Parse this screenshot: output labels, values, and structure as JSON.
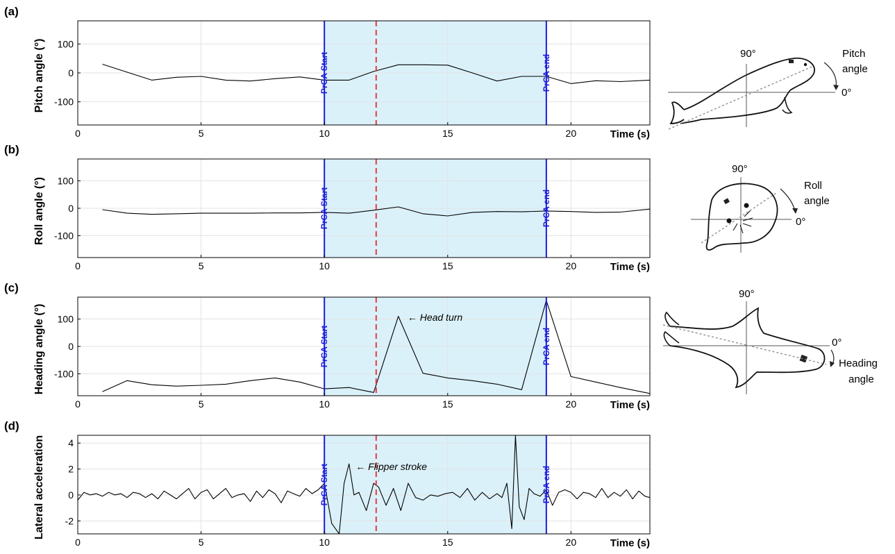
{
  "colors": {
    "line": "#000000",
    "shade": "#daf1fa",
    "marker": "#1a1adb",
    "dashed": "#e8383d",
    "grid": "#e3e3e3"
  },
  "chart_data": [
    {
      "type": "line",
      "panel": "(a)",
      "ylabel": "Pitch angle (°)",
      "xlabel": "Time (s)",
      "xlim": [
        0,
        23.2
      ],
      "ylim": [
        -180,
        180
      ],
      "xticks": [
        0,
        5,
        10,
        15,
        20
      ],
      "yticks": [
        -100,
        0,
        100
      ],
      "grid": true,
      "shaded_region": [
        10,
        19
      ],
      "dashed_line_x": 12.1,
      "markers": [
        {
          "x": 10,
          "label": "PrCA Start"
        },
        {
          "x": 19,
          "label": "PrCA end"
        }
      ],
      "annotations": [],
      "series": [
        {
          "x": [
            1,
            3,
            4,
            5,
            6,
            7,
            8,
            9,
            10,
            11,
            12,
            13,
            14,
            15,
            16,
            17,
            18,
            19,
            20,
            21,
            22,
            23.2
          ],
          "y": [
            30,
            -25,
            -15,
            -12,
            -25,
            -28,
            -20,
            -14,
            -25,
            -25,
            5,
            28,
            28,
            27,
            0,
            -28,
            -12,
            -12,
            -37,
            -27,
            -30,
            -25
          ]
        }
      ]
    },
    {
      "type": "line",
      "panel": "(b)",
      "ylabel": "Roll angle (°)",
      "xlabel": "Time (s)",
      "xlim": [
        0,
        23.2
      ],
      "ylim": [
        -180,
        180
      ],
      "xticks": [
        0,
        5,
        10,
        15,
        20
      ],
      "yticks": [
        -100,
        0,
        100
      ],
      "grid": true,
      "shaded_region": [
        10,
        19
      ],
      "dashed_line_x": 12.1,
      "markers": [
        {
          "x": 10,
          "label": "PrCA Start"
        },
        {
          "x": 19,
          "label": "PrCA end"
        }
      ],
      "annotations": [],
      "series": [
        {
          "x": [
            1,
            2,
            3,
            4,
            5,
            6,
            7,
            8,
            9,
            10,
            11,
            12,
            13,
            14,
            15,
            16,
            17,
            18,
            19,
            20,
            21,
            22,
            23.2
          ],
          "y": [
            -5,
            -18,
            -22,
            -20,
            -18,
            -18,
            -18,
            -17,
            -17,
            -15,
            -18,
            -7,
            5,
            -20,
            -28,
            -15,
            -12,
            -13,
            -10,
            -12,
            -15,
            -14,
            -3
          ]
        }
      ]
    },
    {
      "type": "line",
      "panel": "(c)",
      "ylabel": "Heading angle (°)",
      "xlabel": "Time (s)",
      "xlim": [
        0,
        23.2
      ],
      "ylim": [
        -180,
        180
      ],
      "xticks": [
        0,
        5,
        10,
        15,
        20
      ],
      "yticks": [
        -100,
        0,
        100
      ],
      "grid": true,
      "shaded_region": [
        10,
        19
      ],
      "dashed_line_x": 12.1,
      "markers": [
        {
          "x": 10,
          "label": "PrCA Start"
        },
        {
          "x": 19,
          "label": "PrCA end"
        }
      ],
      "annotations": [
        {
          "x": 13.2,
          "y": 107,
          "text": "← Head turn"
        }
      ],
      "series": [
        {
          "x": [
            1,
            2,
            3,
            4,
            5,
            6,
            7,
            8,
            9,
            10,
            11,
            12,
            13,
            14,
            15,
            16,
            17,
            18,
            19,
            20,
            21,
            22,
            23.2
          ],
          "y": [
            -165,
            -125,
            -140,
            -145,
            -142,
            -138,
            -125,
            -115,
            -130,
            -155,
            -150,
            -168,
            110,
            -98,
            -115,
            -125,
            -138,
            -158,
            168,
            -110,
            -130,
            -150,
            -172
          ]
        }
      ]
    },
    {
      "type": "line",
      "panel": "(d)",
      "ylabel": "Lateral acceleration",
      "xlabel": "Time (s)",
      "xlim": [
        0,
        23.2
      ],
      "ylim": [
        -3,
        4.6
      ],
      "xticks": [
        0,
        5,
        10,
        15,
        20
      ],
      "yticks": [
        -2,
        0,
        2,
        4
      ],
      "grid": true,
      "shaded_region": [
        10,
        19
      ],
      "dashed_line_x": 12.1,
      "markers": [
        {
          "x": 10,
          "label": "PrCA Start"
        },
        {
          "x": 19,
          "label": "PrCA end"
        }
      ],
      "annotations": [
        {
          "x": 11.1,
          "y": 2.2,
          "text": "← Flipper stroke"
        }
      ],
      "series": [
        {
          "x": [
            0,
            0.25,
            0.5,
            0.75,
            1,
            1.25,
            1.5,
            1.75,
            2,
            2.25,
            2.5,
            2.75,
            3,
            3.25,
            3.5,
            3.75,
            4,
            4.25,
            4.5,
            4.75,
            5,
            5.25,
            5.5,
            5.75,
            6,
            6.25,
            6.5,
            6.75,
            7,
            7.25,
            7.5,
            7.75,
            8,
            8.25,
            8.5,
            8.75,
            9,
            9.25,
            9.5,
            9.75,
            10,
            10.3,
            10.6,
            10.8,
            11,
            11.2,
            11.4,
            11.7,
            12,
            12.2,
            12.5,
            12.8,
            13.1,
            13.4,
            13.7,
            14,
            14.3,
            14.6,
            14.9,
            15.2,
            15.5,
            15.8,
            16.1,
            16.4,
            16.7,
            17,
            17.2,
            17.4,
            17.6,
            17.75,
            17.9,
            18.1,
            18.3,
            18.5,
            18.75,
            19,
            19.25,
            19.5,
            19.75,
            20,
            20.25,
            20.5,
            20.75,
            21,
            21.25,
            21.5,
            21.75,
            22,
            22.25,
            22.5,
            22.75,
            23,
            23.2
          ],
          "y": [
            -0.4,
            0.2,
            0,
            0.1,
            -0.1,
            0.2,
            0,
            0.1,
            -0.2,
            0.2,
            0.1,
            -0.2,
            0.1,
            -0.3,
            0.3,
            0,
            -0.3,
            0.1,
            0.5,
            -0.3,
            0.2,
            0.4,
            -0.3,
            0.1,
            0.5,
            -0.2,
            0,
            0.1,
            -0.5,
            0.3,
            -0.2,
            0.4,
            0.1,
            -0.6,
            0.3,
            0.1,
            -0.1,
            0.5,
            0.1,
            0.4,
            0.9,
            -2.2,
            -3.0,
            0.9,
            2.4,
            0,
            0.2,
            -1.2,
            0.9,
            0.6,
            -0.8,
            0.5,
            -1.2,
            0.9,
            -0.2,
            -0.4,
            0,
            -0.1,
            0.1,
            0.2,
            -0.2,
            0.5,
            -0.4,
            0.2,
            -0.3,
            0.1,
            -0.2,
            0.9,
            -2.6,
            4.6,
            -0.9,
            -1.9,
            0.5,
            0.1,
            -0.1,
            0.4,
            -0.8,
            0.2,
            0.4,
            0.2,
            -0.3,
            0.2,
            0.1,
            -0.2,
            0.5,
            -0.2,
            0.2,
            -0.1,
            0.4,
            -0.3,
            0.3,
            -0.1,
            -0.2
          ]
        }
      ]
    }
  ],
  "diagrams": {
    "pitch": {
      "label_90": "90°",
      "label_0": "0°",
      "angle_label_1": "Pitch",
      "angle_label_2": "angle"
    },
    "roll": {
      "label_90": "90°",
      "label_0": "0°",
      "angle_label_1": "Roll",
      "angle_label_2": "angle"
    },
    "heading": {
      "label_90": "90°",
      "label_0": "0°",
      "angle_label_1": "Heading",
      "angle_label_2": "angle"
    }
  }
}
